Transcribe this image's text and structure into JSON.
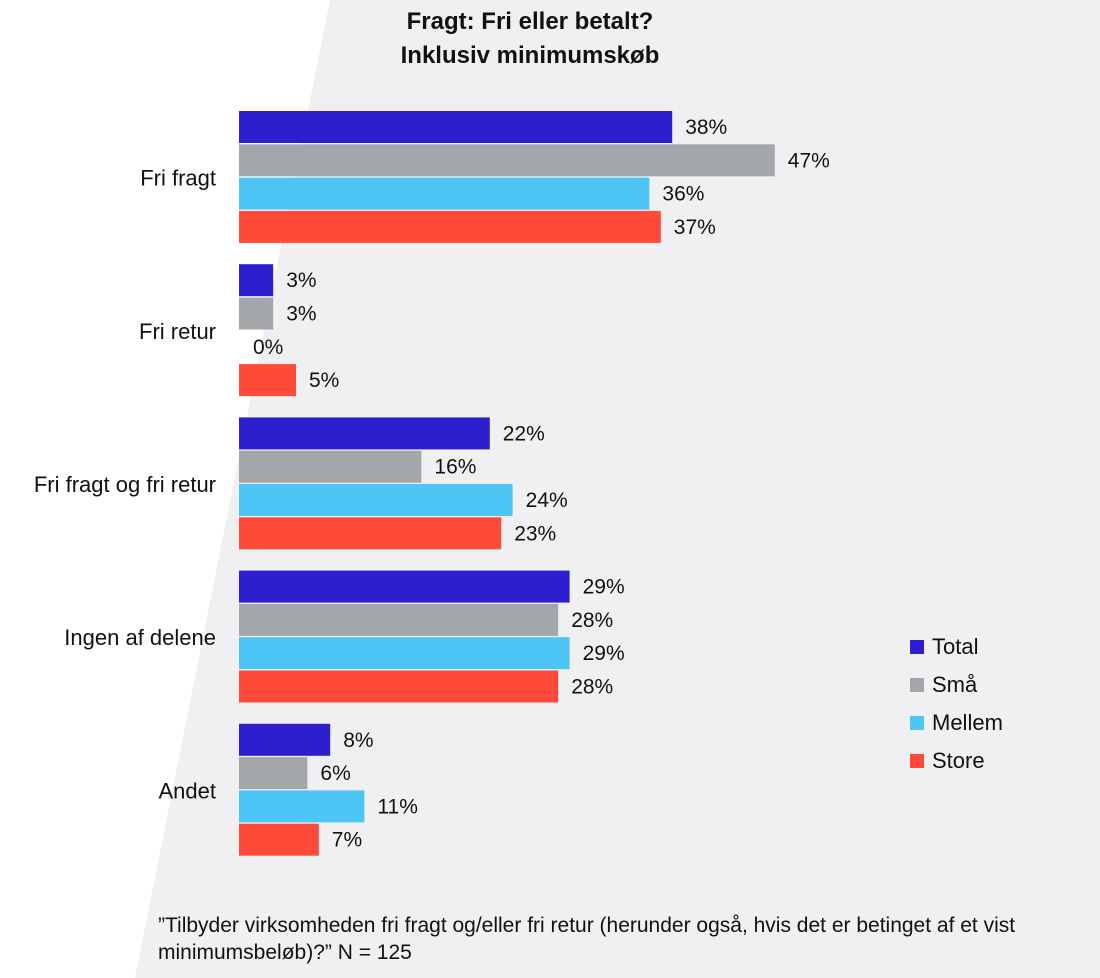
{
  "colors": {
    "Total": "#2b1fcf",
    "Små": "#a3a7aa",
    "Mellem": "#4dc6f5",
    "Store": "#ff4a3a",
    "background_wedge": "#f0f0f2"
  },
  "footnote": "”Tilbyder virksomheden fri fragt og/eller fri retur (herunder også, hvis det er betinget af et vist minimumsbeløb)?” N = 125",
  "chart_data": {
    "type": "bar",
    "orientation": "horizontal",
    "title": "Fragt: Fri eller betalt?",
    "subtitle": "Inklusiv minimumskøb",
    "categories": [
      "Fri fragt",
      "Fri retur",
      "Fri fragt og fri retur",
      "Ingen af delene",
      "Andet"
    ],
    "series": [
      {
        "name": "Total",
        "values": [
          38,
          3,
          22,
          29,
          8
        ]
      },
      {
        "name": "Små",
        "values": [
          47,
          3,
          16,
          28,
          6
        ]
      },
      {
        "name": "Mellem",
        "values": [
          36,
          0,
          24,
          29,
          11
        ]
      },
      {
        "name": "Store",
        "values": [
          37,
          5,
          23,
          28,
          7
        ]
      }
    ],
    "value_suffix": "%",
    "xlim": [
      0,
      50
    ],
    "grid": false,
    "legend_position": "right"
  }
}
